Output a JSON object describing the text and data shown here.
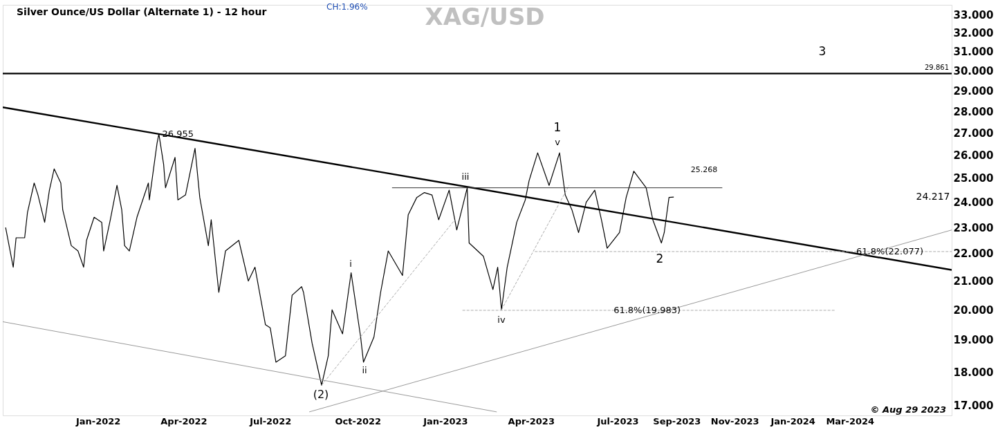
{
  "chart_data": {
    "type": "line",
    "title": "XAG/USD",
    "subtitle": "Silver Ounce/US Dollar (Alternate 1) - 12 hour",
    "log": "y",
    "grid": false,
    "marker": "none",
    "xlim": [
      "2021-09-23",
      "2024-06-16"
    ],
    "ylim": [
      16.72,
      33.55
    ],
    "xticks": [
      {
        "value": "2022-01-01",
        "label": "Jan-2022"
      },
      {
        "value": "2022-04-01",
        "label": "Apr-2022"
      },
      {
        "value": "2022-07-01",
        "label": "Jul-2022"
      },
      {
        "value": "2022-10-01",
        "label": "Oct-2022"
      },
      {
        "value": "2023-01-01",
        "label": "Jan-2023"
      },
      {
        "value": "2023-04-01",
        "label": "Apr-2023"
      },
      {
        "value": "2023-07-01",
        "label": "Jul-2023"
      },
      {
        "value": "2023-09-01",
        "label": "Sep-2023"
      },
      {
        "value": "2023-11-01",
        "label": "Nov-2023"
      },
      {
        "value": "2024-01-01",
        "label": "Jan-2024"
      },
      {
        "value": "2024-03-01",
        "label": "Mar-2024"
      }
    ],
    "yticks": [
      {
        "value": 17,
        "label": "17.000"
      },
      {
        "value": 18,
        "label": "18.000"
      },
      {
        "value": 19,
        "label": "19.000"
      },
      {
        "value": 20,
        "label": "20.000"
      },
      {
        "value": 21,
        "label": "21.000"
      },
      {
        "value": 22,
        "label": "22.000"
      },
      {
        "value": 23,
        "label": "23.000"
      },
      {
        "value": 24,
        "label": "24.000"
      },
      {
        "value": 25,
        "label": "25.000"
      },
      {
        "value": 26,
        "label": "26.000"
      },
      {
        "value": 27,
        "label": "27.000"
      },
      {
        "value": 28,
        "label": "28.000"
      },
      {
        "value": 29,
        "label": "29.000"
      },
      {
        "value": 30,
        "label": "30.000"
      },
      {
        "value": 31,
        "label": "31.000"
      },
      {
        "value": 32,
        "label": "32.000"
      },
      {
        "value": 33,
        "label": "33.000"
      }
    ],
    "series": [
      {
        "color": "#000000",
        "line_style": "solid",
        "x": [
          "2021-09-26",
          "2021-10-04",
          "2021-10-07",
          "2021-10-16",
          "2021-10-19",
          "2021-10-26",
          "2021-10-30",
          "2021-11-06",
          "2021-11-11",
          "2021-11-16",
          "2021-11-23",
          "2021-11-25",
          "2021-12-04",
          "2021-12-11",
          "2021-12-17",
          "2021-12-20",
          "2021-12-28",
          "2022-01-05",
          "2022-01-07",
          "2022-01-14",
          "2022-01-21",
          "2022-01-26",
          "2022-01-29",
          "2022-02-03",
          "2022-02-11",
          "2022-02-23",
          "2022-02-24",
          "2022-03-04",
          "2022-03-06",
          "2022-03-11",
          "2022-03-13",
          "2022-03-23",
          "2022-03-26",
          "2022-04-03",
          "2022-04-13",
          "2022-04-18",
          "2022-04-27",
          "2022-04-30",
          "2022-05-08",
          "2022-05-15",
          "2022-05-29",
          "2022-06-08",
          "2022-06-15",
          "2022-06-26",
          "2022-07-01",
          "2022-07-07",
          "2022-07-17",
          "2022-07-24",
          "2022-08-03",
          "2022-08-05",
          "2022-08-14",
          "2022-08-24",
          "2022-08-31",
          "2022-09-04",
          "2022-09-15",
          "2022-09-24",
          "2022-10-04",
          "2022-10-07",
          "2022-10-18",
          "2022-10-25",
          "2022-11-02",
          "2022-11-17",
          "2022-11-23",
          "2022-12-02",
          "2022-12-10",
          "2022-12-18",
          "2022-12-25",
          "2023-01-05",
          "2023-01-13",
          "2023-01-24",
          "2023-01-26",
          "2023-02-10",
          "2023-02-20",
          "2023-02-25",
          "2023-03-01",
          "2023-03-07",
          "2023-03-17",
          "2023-03-26",
          "2023-03-30",
          "2023-04-08",
          "2023-04-20",
          "2023-05-01",
          "2023-05-07",
          "2023-05-14",
          "2023-05-21",
          "2023-05-29",
          "2023-06-07",
          "2023-06-14",
          "2023-06-20",
          "2023-07-03",
          "2023-07-10",
          "2023-07-18",
          "2023-07-31",
          "2023-08-07",
          "2023-08-16",
          "2023-08-19",
          "2023-08-24",
          "2023-08-29"
        ],
        "values": [
          23.0,
          21.5,
          22.6,
          22.6,
          23.6,
          24.8,
          24.3,
          23.2,
          24.5,
          25.4,
          24.8,
          23.7,
          22.3,
          22.1,
          21.5,
          22.5,
          23.4,
          23.2,
          22.1,
          23.3,
          24.7,
          23.7,
          22.3,
          22.1,
          23.4,
          24.8,
          24.1,
          26.5,
          26.955,
          25.6,
          24.6,
          25.9,
          24.1,
          24.3,
          26.3,
          24.2,
          22.3,
          23.3,
          20.6,
          22.1,
          22.5,
          21.0,
          21.5,
          19.5,
          19.4,
          18.3,
          18.5,
          20.5,
          20.8,
          20.6,
          18.9,
          17.6,
          18.5,
          20.0,
          19.2,
          21.3,
          19.1,
          18.3,
          19.1,
          20.6,
          22.1,
          21.2,
          23.5,
          24.2,
          24.4,
          24.3,
          23.3,
          24.5,
          22.9,
          24.6,
          22.4,
          21.9,
          20.7,
          21.5,
          20.0,
          21.5,
          23.2,
          24.1,
          24.9,
          26.1,
          24.7,
          26.1,
          24.3,
          23.7,
          22.8,
          24.0,
          24.5,
          23.3,
          22.2,
          22.8,
          24.2,
          25.3,
          24.6,
          23.3,
          22.4,
          22.8,
          24.2,
          24.217
        ]
      },
      {
        "color": "#000000",
        "line_style": "solid",
        "x": [
          "2021-09-23",
          "2024-06-16"
        ],
        "values": [
          28.2,
          21.4
        ]
      },
      {
        "color": "#999999",
        "line_style": "solid",
        "x": [
          "2021-09-23",
          "2023-02-24"
        ],
        "values": [
          19.6,
          16.82
        ]
      },
      {
        "color": "#999999",
        "line_style": "solid",
        "x": [
          "2022-08-11",
          "2024-06-16"
        ],
        "values": [
          16.82,
          22.9
        ]
      },
      {
        "color": "#aaaaaa",
        "line_style": "dashed",
        "x": [
          "2022-08-24",
          "2023-01-11"
        ],
        "values": [
          17.6,
          23.3
        ]
      },
      {
        "color": "#aaaaaa",
        "line_style": "dashed",
        "x": [
          "2023-03-01",
          "2023-05-11"
        ],
        "values": [
          20.0,
          24.7
        ]
      },
      {
        "color": "#333333",
        "line_style": "solid",
        "x": [
          "2022-11-06",
          "2023-10-19"
        ],
        "values": [
          24.6,
          24.6
        ]
      },
      {
        "color": "#aaaaaa",
        "line_style": "dashed",
        "x": [
          "2023-04-05",
          "2024-06-16"
        ],
        "values": [
          22.077,
          22.077
        ]
      },
      {
        "color": "#aaaaaa",
        "line_style": "dashed",
        "x": [
          "2023-01-19",
          "2024-02-14"
        ],
        "values": [
          19.983,
          19.983
        ]
      }
    ],
    "ref_lines": [
      {
        "axis": "y",
        "value": 29.861,
        "label": "29.861",
        "color": "#000000",
        "line_style": "solid"
      }
    ],
    "annotations": [
      "CH:1.96%",
      "© Aug 29 2023",
      {
        "text": "26.955",
        "x": "2022-03-26",
        "y": 26.955
      },
      "25.268",
      "24.217",
      "1",
      "v",
      "iii",
      "iv",
      "i",
      "ii",
      "(2)",
      "2",
      "3",
      {
        "text": "61.8%(22.077)",
        "x": "2024-04-12",
        "y": 22.077
      },
      {
        "text": "61.8%(19.983)",
        "x": "2023-08-01",
        "y": 19.983
      }
    ]
  }
}
